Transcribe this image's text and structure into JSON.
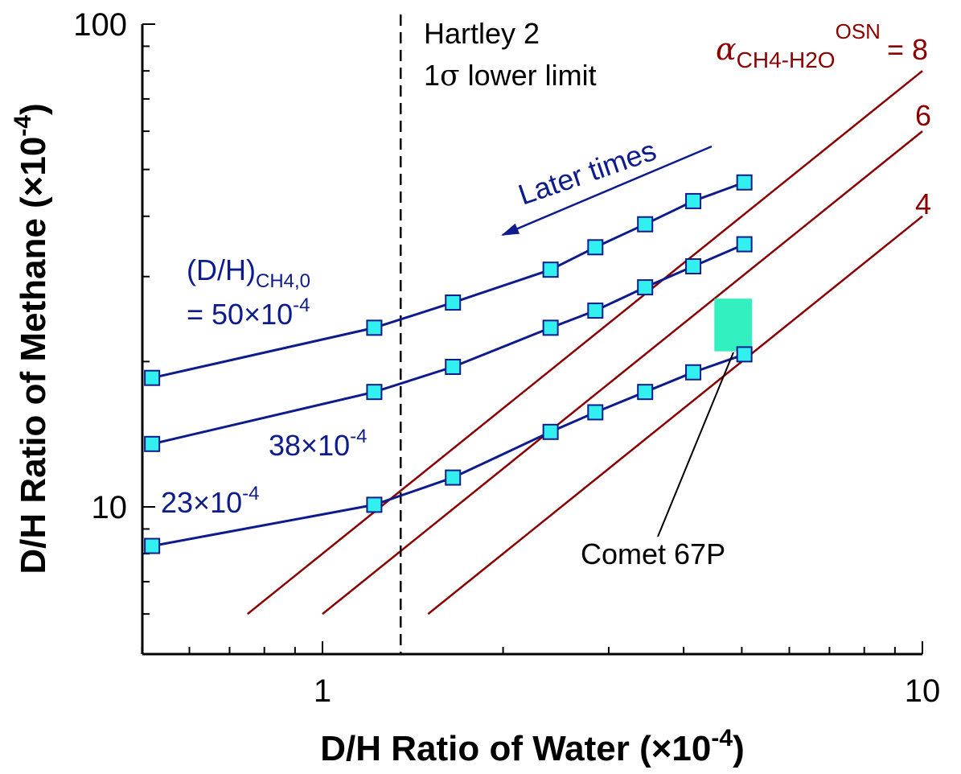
{
  "chart_data": {
    "type": "line",
    "xlabel": "D/H Ratio of Water (×10",
    "xlabel_exp": "-4",
    "xlabel_close": ")",
    "ylabel": "D/H Ratio of Methane (×10",
    "ylabel_exp": "-4",
    "ylabel_close": ")",
    "xscale": "log",
    "yscale": "log",
    "xlim": [
      0.5,
      10
    ],
    "ylim": [
      6,
      100
    ],
    "x_tick_labels": [
      "1",
      "10"
    ],
    "y_tick_labels": [
      "10",
      "100"
    ],
    "series": [
      {
        "label_parts": [
          "(D/H)",
          "CH4,0",
          "= 50×10",
          "-4"
        ],
        "points": [
          [
            0.52,
            18.5
          ],
          [
            1.22,
            23.5
          ],
          [
            1.65,
            26.5
          ],
          [
            2.4,
            31
          ],
          [
            2.85,
            34.5
          ],
          [
            3.45,
            38.5
          ],
          [
            4.15,
            43
          ],
          [
            5.05,
            47
          ]
        ]
      },
      {
        "label_parts": [
          "38×10",
          "-4"
        ],
        "points": [
          [
            0.52,
            13.5
          ],
          [
            1.22,
            17.3
          ],
          [
            1.65,
            19.5
          ],
          [
            2.4,
            23.5
          ],
          [
            2.85,
            25.5
          ],
          [
            3.45,
            28.5
          ],
          [
            4.15,
            31.5
          ],
          [
            5.05,
            35
          ]
        ]
      },
      {
        "label_parts": [
          "23×10",
          "-4"
        ],
        "points": [
          [
            0.52,
            8.3
          ],
          [
            1.22,
            10.1
          ],
          [
            1.65,
            11.5
          ],
          [
            2.4,
            14.3
          ],
          [
            2.85,
            15.7
          ],
          [
            3.45,
            17.3
          ],
          [
            4.15,
            19
          ],
          [
            5.05,
            20.7
          ]
        ]
      }
    ],
    "fractionation_lines": [
      {
        "alpha": 8,
        "label": "= 8"
      },
      {
        "alpha": 6,
        "label": "6"
      },
      {
        "alpha": 4,
        "label": "4"
      }
    ],
    "alpha_label": {
      "symbol": "α",
      "subscript": "CH4-H2O",
      "superscript": "OSN"
    },
    "hartley": {
      "x": 1.35,
      "line1": "Hartley 2",
      "line2_prefix": "1",
      "line2_sigma": "σ",
      "line2_suffix": " lower limit"
    },
    "comet_67p": {
      "x_range": [
        4.5,
        5.2
      ],
      "y_range": [
        21,
        27
      ],
      "label": "Comet 67P"
    },
    "later_times_label": "Later times",
    "colors": {
      "series": "#0d1b8c",
      "marker_fill": "#33f0f0",
      "fractionation": "#8b0000",
      "comet": "#33f0c0",
      "axis": "#000000"
    }
  }
}
